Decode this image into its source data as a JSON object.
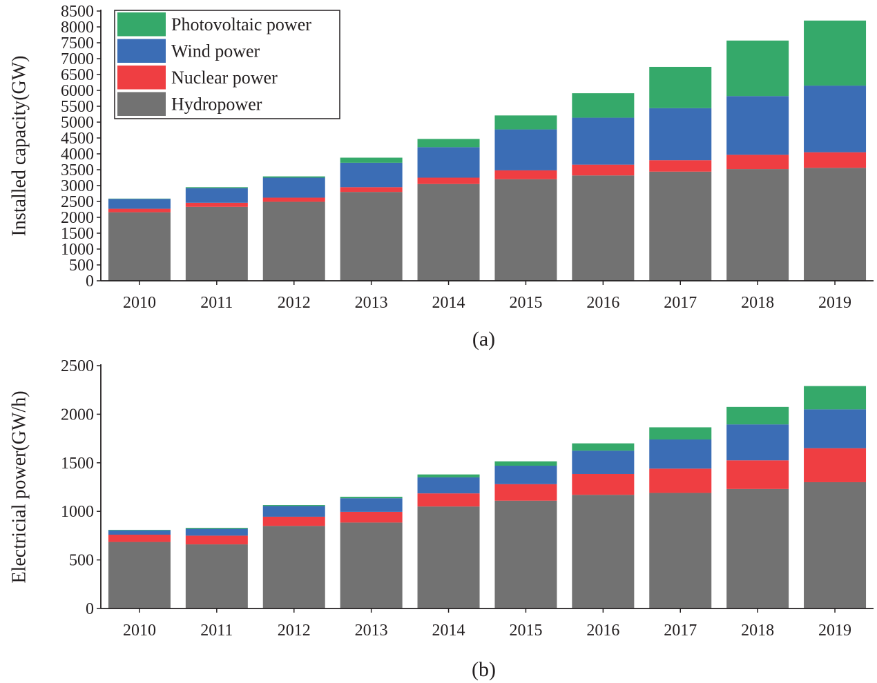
{
  "colors": {
    "Hydropower": "#727272",
    "Nuclear power": "#ef3e42",
    "Wind power": "#3b6db5",
    "Photovoltaic power": "#35a96a"
  },
  "chart_data": [
    {
      "type": "bar",
      "stacked": true,
      "caption": "(a)",
      "ylabel": "Installed capacity(GW)",
      "ylim": [
        0,
        8500
      ],
      "yticks": [
        0,
        500,
        1000,
        1500,
        2000,
        2500,
        3000,
        3500,
        4000,
        4500,
        5000,
        5500,
        6000,
        6500,
        7000,
        7500,
        8000,
        8500
      ],
      "grid": false,
      "legend": {
        "placement": "top-left",
        "entries": [
          "Photovoltaic power",
          "Wind power",
          "Nuclear power",
          "Hydropower"
        ]
      },
      "categories": [
        "2010",
        "2011",
        "2012",
        "2013",
        "2014",
        "2015",
        "2016",
        "2017",
        "2018",
        "2019"
      ],
      "series": [
        {
          "name": "Hydropower",
          "values": [
            2160,
            2330,
            2490,
            2800,
            3050,
            3200,
            3320,
            3440,
            3520,
            3560
          ]
        },
        {
          "name": "Nuclear power",
          "values": [
            110,
            130,
            130,
            150,
            200,
            280,
            340,
            360,
            450,
            490
          ]
        },
        {
          "name": "Wind power",
          "values": [
            310,
            460,
            630,
            770,
            960,
            1290,
            1480,
            1640,
            1850,
            2100
          ]
        },
        {
          "name": "Photovoltaic power",
          "values": [
            10,
            30,
            40,
            160,
            260,
            440,
            770,
            1300,
            1750,
            2050
          ]
        }
      ]
    },
    {
      "type": "bar",
      "stacked": true,
      "caption": "(b)",
      "ylabel": "Electricial power(GW/h)",
      "ylim": [
        0,
        2500
      ],
      "yticks": [
        0,
        500,
        1000,
        1500,
        2000,
        2500
      ],
      "grid": false,
      "categories": [
        "2010",
        "2011",
        "2012",
        "2013",
        "2014",
        "2015",
        "2016",
        "2017",
        "2018",
        "2019"
      ],
      "series": [
        {
          "name": "Hydropower",
          "values": [
            685,
            660,
            850,
            885,
            1050,
            1110,
            1170,
            1190,
            1230,
            1300
          ]
        },
        {
          "name": "Nuclear power",
          "values": [
            75,
            90,
            95,
            110,
            135,
            170,
            215,
            250,
            295,
            350
          ]
        },
        {
          "name": "Wind power",
          "values": [
            45,
            70,
            110,
            140,
            165,
            190,
            240,
            300,
            370,
            400
          ]
        },
        {
          "name": "Photovoltaic power",
          "values": [
            5,
            10,
            10,
            15,
            30,
            45,
            75,
            125,
            180,
            240
          ]
        }
      ]
    }
  ]
}
